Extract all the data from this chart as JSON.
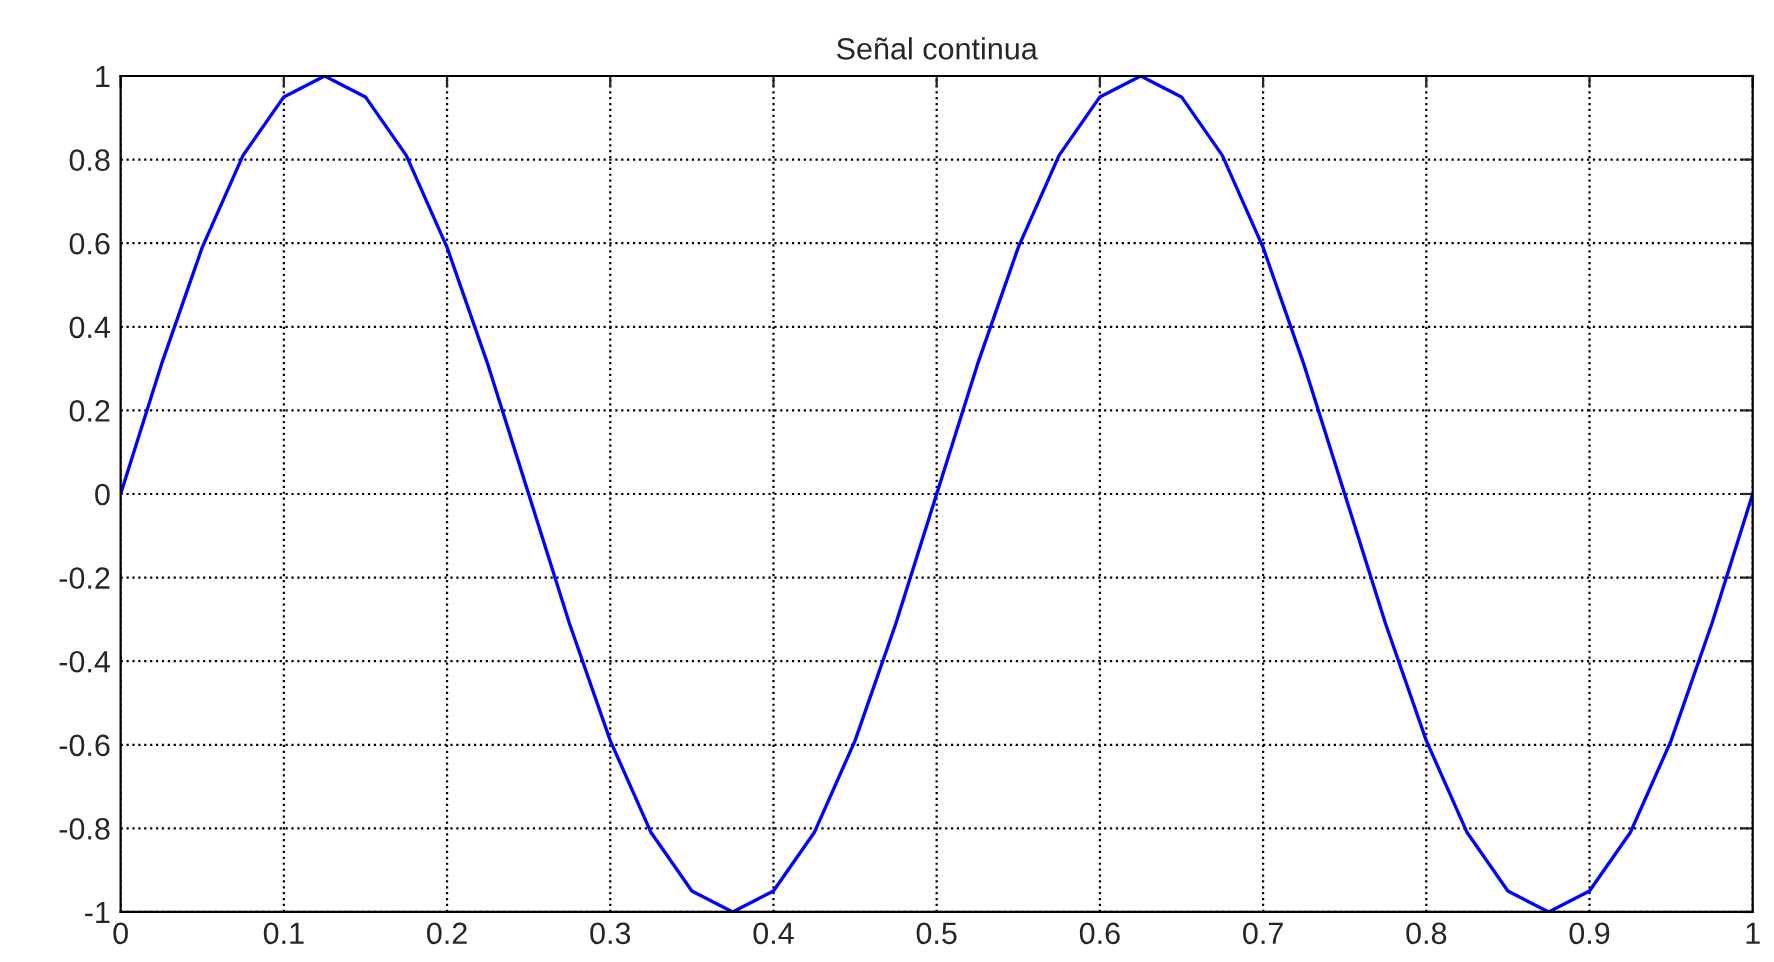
{
  "chart_data": {
    "type": "line",
    "title": "Señal continua",
    "x": [
      0,
      0.025,
      0.05,
      0.075,
      0.1,
      0.125,
      0.15,
      0.175,
      0.2,
      0.225,
      0.25,
      0.275,
      0.3,
      0.325,
      0.35,
      0.375,
      0.4,
      0.425,
      0.45,
      0.475,
      0.5,
      0.525,
      0.55,
      0.575,
      0.6,
      0.625,
      0.65,
      0.675,
      0.7,
      0.725,
      0.75,
      0.775,
      0.8,
      0.825,
      0.85,
      0.875,
      0.9,
      0.925,
      0.95,
      0.975,
      1
    ],
    "series": [
      {
        "color": "#0000ff",
        "values": [
          0,
          0.31,
          0.59,
          0.81,
          0.95,
          1,
          0.95,
          0.81,
          0.59,
          0.31,
          0,
          -0.31,
          -0.59,
          -0.81,
          -0.95,
          -1,
          -0.95,
          -0.81,
          -0.59,
          -0.31,
          0,
          0.31,
          0.59,
          0.81,
          0.95,
          1,
          0.95,
          0.81,
          0.59,
          0.31,
          0,
          -0.31,
          -0.59,
          -0.81,
          -0.95,
          -1,
          -0.95,
          -0.81,
          -0.59,
          -0.31,
          0
        ]
      }
    ],
    "xlim": [
      0,
      1
    ],
    "ylim": [
      -1,
      1
    ],
    "xticks": [
      0,
      0.1,
      0.2,
      0.3,
      0.4,
      0.5,
      0.6,
      0.7,
      0.8,
      0.9,
      1
    ],
    "yticks": [
      -1,
      -0.8,
      -0.6,
      -0.4,
      -0.2,
      0,
      0.2,
      0.4,
      0.6,
      0.8,
      1
    ],
    "grid": true,
    "line_style": "solid"
  }
}
